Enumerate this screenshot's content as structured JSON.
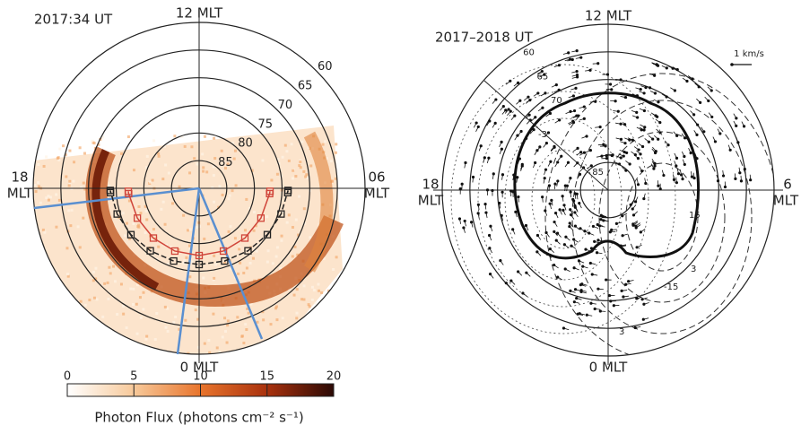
{
  "chart_data": [
    {
      "type": "polar",
      "title": "2017:34 UT",
      "labels": {
        "top": [
          "12 MLT"
        ],
        "left": [
          "18",
          "MLT"
        ],
        "right": [
          "06",
          "MLT"
        ],
        "bottom": [
          "0 MLT"
        ]
      },
      "rlim": [
        60,
        90
      ],
      "rticks": [
        60,
        65,
        70,
        75,
        80,
        85
      ],
      "colorbar": {
        "lim": [
          0,
          20
        ],
        "ticks": [
          0,
          5,
          10,
          15,
          20
        ],
        "label": "Photon Flux (photons cm⁻² s⁻¹)"
      }
    },
    {
      "type": "polar",
      "title": "2017–2018 UT",
      "labels": {
        "top": [
          "12 MLT"
        ],
        "left": [
          "18",
          "MLT"
        ],
        "right": [
          "6",
          "MLT"
        ],
        "bottom": [
          "0 MLT"
        ]
      },
      "rlim": [
        60,
        90
      ],
      "rticks": [
        60,
        65,
        70,
        85
      ],
      "scale_label": "1 km/s",
      "contour_labels": [
        "-3",
        "15",
        "-15",
        "3",
        "3"
      ]
    }
  ]
}
